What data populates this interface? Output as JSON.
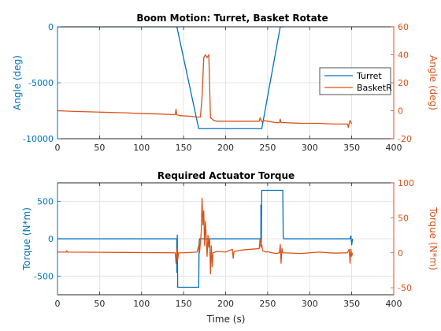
{
  "chart_data": [
    {
      "type": "line",
      "title": "Boom Motion: Turret, Basket Rotate",
      "xlabel": "",
      "x_ticks": [
        "0",
        "50",
        "100",
        "150",
        "200",
        "250",
        "300",
        "350",
        "400"
      ],
      "xlim": [
        0,
        400
      ],
      "left_axis": {
        "label": "Angle (deg)",
        "ylim": [
          -10000,
          0
        ],
        "ticks": [
          "0",
          "-5000",
          "-10000"
        ],
        "tick_values": [
          0,
          -5000,
          -10000
        ],
        "color": "#0072BD"
      },
      "right_axis": {
        "label": "Angle (deg)",
        "ylim": [
          -20,
          60
        ],
        "ticks": [
          "60",
          "40",
          "20",
          "0",
          "-20"
        ],
        "tick_values": [
          60,
          40,
          20,
          0,
          -20
        ],
        "color": "#D95319"
      },
      "legend": {
        "placement": "right",
        "entries": [
          "Turret",
          "BasketR"
        ]
      },
      "grid": true,
      "series": [
        {
          "name": "Turret",
          "axis": "left",
          "color": "#0072BD",
          "x": [
            0,
            142,
            168,
            243,
            265,
            270
          ],
          "y": [
            0,
            0,
            -9100,
            -9100,
            0,
            0
          ]
        },
        {
          "name": "BasketR",
          "axis": "right",
          "color": "#D95319",
          "x": [
            0,
            20,
            50,
            80,
            100,
            120,
            140,
            141,
            142,
            143,
            145,
            160,
            165,
            170,
            172,
            174,
            176,
            178,
            180,
            182,
            184,
            186,
            190,
            210,
            240,
            241,
            243,
            245,
            260,
            264,
            265,
            266,
            270,
            290,
            310,
            330,
            345,
            346,
            347,
            348,
            350
          ],
          "y": [
            0,
            -0.5,
            -1,
            -1.5,
            -2,
            -2.3,
            -2.8,
            1,
            -3,
            -3,
            -3.5,
            -4,
            -4.5,
            -4.5,
            10,
            38,
            40,
            38,
            40,
            -5,
            -6,
            -7,
            -7.5,
            -7.5,
            -7.5,
            -5,
            -8,
            -7,
            -8.5,
            -8.5,
            -6,
            -8.5,
            -8.5,
            -9,
            -9,
            -9.5,
            -9.5,
            -12,
            -9,
            -7,
            -9.5
          ]
        }
      ]
    },
    {
      "type": "line",
      "title": "Required Actuator Torque",
      "xlabel": "Time (s)",
      "x_ticks": [
        "0",
        "50",
        "100",
        "150",
        "200",
        "250",
        "300",
        "350",
        "400"
      ],
      "xlim": [
        0,
        400
      ],
      "left_axis": {
        "label": "Torque (N*m)",
        "ylim": [
          -750,
          750
        ],
        "ticks": [
          "500",
          "0",
          "-500"
        ],
        "tick_values": [
          500,
          0,
          -500
        ],
        "color": "#0072BD"
      },
      "right_axis": {
        "label": "Torque (N*m)",
        "ylim": [
          -60,
          100
        ],
        "ticks": [
          "100",
          "50",
          "0",
          "-50"
        ],
        "tick_values": [
          100,
          50,
          0,
          -50
        ],
        "color": "#D95319"
      },
      "grid": true,
      "series": [
        {
          "name": "Turret",
          "axis": "left",
          "color": "#0072BD",
          "x": [
            0,
            141.9,
            142,
            142.5,
            143,
            168,
            168.5,
            169,
            241.9,
            242,
            242.5,
            243,
            268,
            268.5,
            269,
            348,
            349,
            350,
            351
          ],
          "y": [
            0,
            0,
            -450,
            50,
            -650,
            -650,
            -50,
            0,
            0,
            450,
            -50,
            650,
            650,
            50,
            0,
            0,
            40,
            -80,
            0
          ]
        },
        {
          "name": "BasketR",
          "axis": "right",
          "color": "#D95319",
          "x": [
            0,
            10,
            11,
            12,
            80,
            140,
            141,
            142,
            143,
            144,
            150,
            166,
            168,
            169,
            170,
            171,
            172,
            173,
            174,
            175,
            176,
            177,
            178,
            179,
            180,
            181,
            182,
            183,
            184,
            185,
            190,
            200,
            208,
            209,
            210,
            220,
            240,
            241,
            242,
            243,
            244,
            246,
            248,
            250,
            255,
            260,
            264,
            265,
            266,
            267,
            268,
            290,
            310,
            330,
            345,
            347,
            348,
            349,
            350,
            351
          ],
          "y": [
            1,
            1,
            3,
            1,
            0.5,
            0,
            -15,
            5,
            -10,
            0,
            0,
            1,
            10,
            0,
            15,
            30,
            78,
            40,
            60,
            10,
            45,
            20,
            -5,
            25,
            8,
            20,
            -30,
            10,
            -20,
            0,
            2,
            1,
            5,
            -8,
            2,
            4,
            6,
            20,
            8,
            12,
            3,
            2,
            1,
            1.5,
            0,
            -1,
            0,
            12,
            -15,
            6,
            0,
            -1,
            1,
            -0.5,
            0,
            5,
            -15,
            5,
            -5,
            0
          ]
        }
      ]
    }
  ]
}
